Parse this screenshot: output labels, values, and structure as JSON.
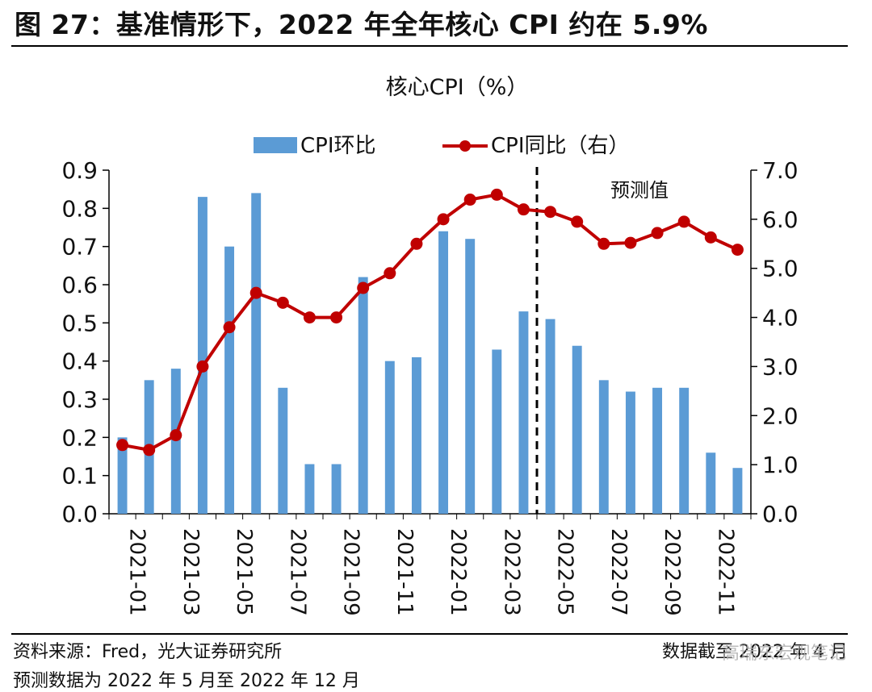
{
  "figure": {
    "title": "图 27：基准情形下，2022 年全年核心 CPI 约在 5.9%",
    "source": "资料来源：Fred，光大证券研究所",
    "note": "预测数据为 2022 年 5 月至 2022 年 12 月",
    "date": "数据截至 2022 年 4 月",
    "watermark": "高瑞东宏观笔记"
  },
  "colors": {
    "bar": "#5B9BD5",
    "line": "#C00000",
    "dashed": "#000000"
  },
  "chart_data": {
    "type": "bar+line",
    "title": "核心CPI（%）",
    "x": [
      "2021-01",
      "2021-02",
      "2021-03",
      "2021-04",
      "2021-05",
      "2021-06",
      "2021-07",
      "2021-08",
      "2021-09",
      "2021-10",
      "2021-11",
      "2021-12",
      "2022-01",
      "2022-02",
      "2022-03",
      "2022-04",
      "2022-05",
      "2022-06",
      "2022-07",
      "2022-08",
      "2022-09",
      "2022-10",
      "2022-11",
      "2022-12"
    ],
    "x_tick_labels": [
      "2021-01",
      "2021-03",
      "2021-05",
      "2021-07",
      "2021-09",
      "2021-11",
      "2022-01",
      "2022-03",
      "2022-05",
      "2022-07",
      "2022-09",
      "2022-11"
    ],
    "series": [
      {
        "name": "CPI环比",
        "type": "bar",
        "axis": "left",
        "values": [
          0.2,
          0.35,
          0.38,
          0.83,
          0.7,
          0.84,
          0.33,
          0.13,
          0.13,
          0.62,
          0.4,
          0.41,
          0.74,
          0.72,
          0.43,
          0.53,
          0.51,
          0.44,
          0.35,
          0.32,
          0.33,
          0.33,
          0.16,
          0.12
        ]
      },
      {
        "name": "CPI同比（右）",
        "type": "line",
        "axis": "right",
        "values": [
          1.4,
          1.3,
          1.6,
          3.0,
          3.8,
          4.5,
          4.3,
          4.0,
          4.0,
          4.6,
          4.9,
          5.5,
          6.0,
          6.4,
          6.5,
          6.2,
          6.15,
          5.95,
          5.5,
          5.52,
          5.72,
          5.95,
          5.63,
          5.38
        ]
      }
    ],
    "y_left": {
      "lim": [
        0,
        0.9
      ],
      "ticks": [
        "0.0",
        "0.1",
        "0.2",
        "0.3",
        "0.4",
        "0.5",
        "0.6",
        "0.7",
        "0.8",
        "0.9"
      ]
    },
    "y_right": {
      "lim": [
        0,
        7.0
      ],
      "ticks": [
        "0.0",
        "1.0",
        "2.0",
        "3.0",
        "4.0",
        "5.0",
        "6.0",
        "7.0"
      ]
    },
    "forecast_divider_after": "2022-04",
    "forecast_label": "预测值",
    "legend_position": "top",
    "grid": false
  }
}
